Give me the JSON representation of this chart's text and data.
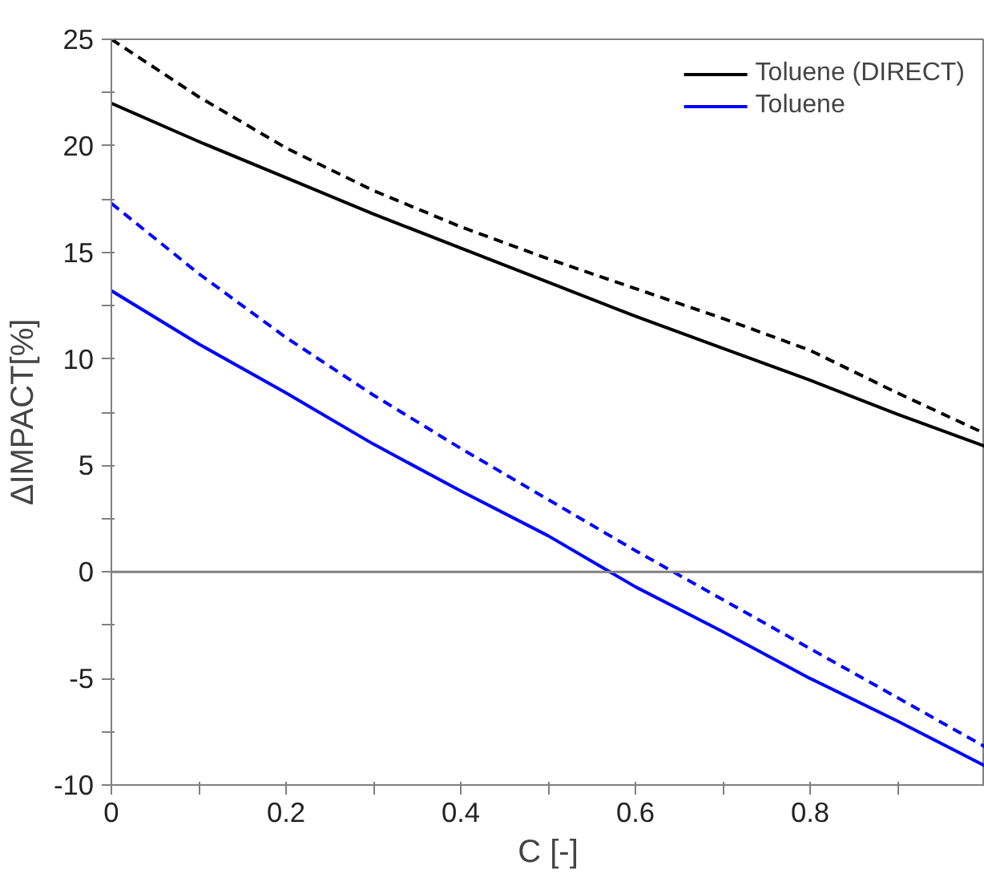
{
  "chart_data": {
    "type": "line",
    "xlabel": "C [-]",
    "ylabel": "ΔIMPACT[%]",
    "xlim": [
      0,
      1
    ],
    "ylim": [
      -10,
      25
    ],
    "xticks": [
      0,
      {
        "value": 0.1,
        "label": null
      },
      0.2,
      {
        "value": 0.3,
        "label": null
      },
      0.4,
      {
        "value": 0.5,
        "label": null
      },
      0.6,
      {
        "value": 0.7,
        "label": null
      },
      0.8,
      {
        "value": 0.9,
        "label": null
      }
    ],
    "yticks": [
      -10,
      {
        "value": -7.5,
        "label": null
      },
      -5,
      {
        "value": -2.5,
        "label": null
      },
      0,
      {
        "value": 2.5,
        "label": null
      },
      5,
      {
        "value": 7.5,
        "label": null
      },
      10,
      {
        "value": 12.5,
        "label": null
      },
      15,
      {
        "value": 17.5,
        "label": null
      },
      20,
      {
        "value": 22.5,
        "label": null
      },
      25
    ],
    "grid": false,
    "legend": "top right",
    "marker": "none",
    "ref_lines": [
      {
        "axis": "y",
        "value": 0,
        "label": null,
        "color": "#808080"
      }
    ],
    "series": [
      {
        "name": "Toluene (DIRECT)",
        "color": "#000000",
        "line_style": "solid",
        "x": [
          0,
          0.1,
          0.2,
          0.3,
          0.4,
          0.5,
          0.6,
          0.7,
          0.8,
          0.9,
          1.0
        ],
        "values": [
          22,
          20.2,
          18.5,
          16.8,
          15.2,
          13.6,
          12.0,
          10.5,
          9.0,
          7.4,
          5.9
        ]
      },
      {
        "name": "Toluene",
        "color": "#0000ff",
        "line_style": "solid",
        "x": [
          0,
          0.1,
          0.2,
          0.3,
          0.4,
          0.5,
          0.6,
          0.7,
          0.8,
          0.9,
          1.0
        ],
        "values": [
          13.2,
          10.7,
          8.4,
          6.0,
          3.8,
          1.7,
          -0.7,
          -2.8,
          -5.0,
          -7.0,
          -9.1
        ]
      },
      {
        "color": "#000000",
        "line_style": "dashed",
        "x": [
          0,
          0.1,
          0.2,
          0.3,
          0.4,
          0.5,
          0.6,
          0.7,
          0.8,
          0.9,
          1.0
        ],
        "values": [
          25,
          22.3,
          19.9,
          17.9,
          16.2,
          14.7,
          13.3,
          11.9,
          10.4,
          8.4,
          6.5
        ]
      },
      {
        "color": "#0000ff",
        "line_style": "dashed",
        "x": [
          0,
          0.1,
          0.2,
          0.3,
          0.4,
          0.5,
          0.6,
          0.7,
          0.8,
          0.9,
          1.0
        ],
        "values": [
          17.3,
          14.0,
          11.0,
          8.3,
          5.8,
          3.4,
          1.0,
          -1.3,
          -3.6,
          -5.9,
          -8.2
        ]
      }
    ]
  }
}
